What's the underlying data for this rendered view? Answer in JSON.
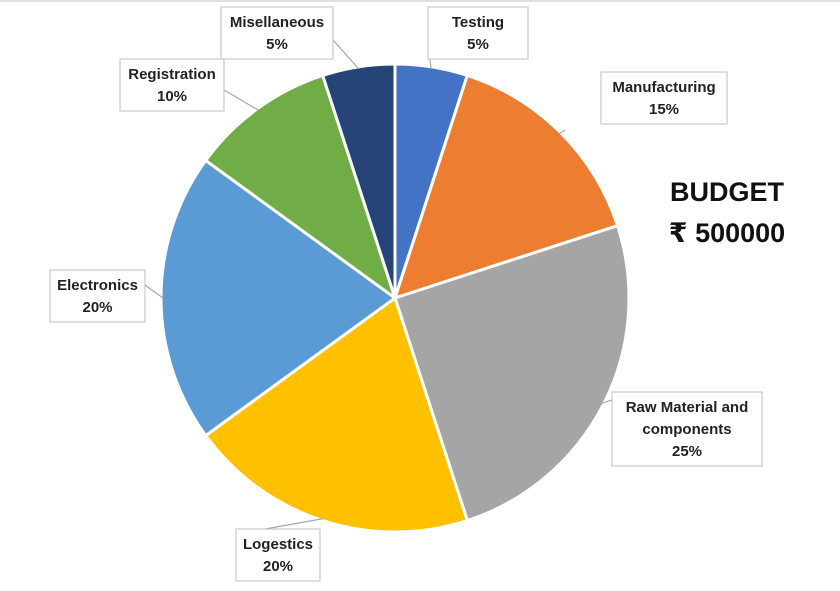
{
  "chart_data": {
    "type": "pie",
    "slices": [
      {
        "label": "Testing",
        "value": 5,
        "value_label": "5%",
        "color": "#4472c4"
      },
      {
        "label": "Manufacturing",
        "value": 15,
        "value_label": "15%",
        "color": "#ed7d31"
      },
      {
        "label": "Raw Material and components",
        "value": 25,
        "value_label": "25%",
        "color": "#a5a5a5"
      },
      {
        "label": "Logestics",
        "value": 20,
        "value_label": "20%",
        "color": "#ffc000"
      },
      {
        "label": "Electronics",
        "value": 20,
        "value_label": "20%",
        "color": "#5b9bd5"
      },
      {
        "label": "Registration",
        "value": 10,
        "value_label": "10%",
        "color": "#70ad47"
      },
      {
        "label": "Misellaneous",
        "value": 5,
        "value_label": "5%",
        "color": "#264478"
      }
    ],
    "start_angle": "12 o'clock, clockwise"
  },
  "budget": {
    "title": "BUDGET",
    "amount": "₹ 500000"
  }
}
